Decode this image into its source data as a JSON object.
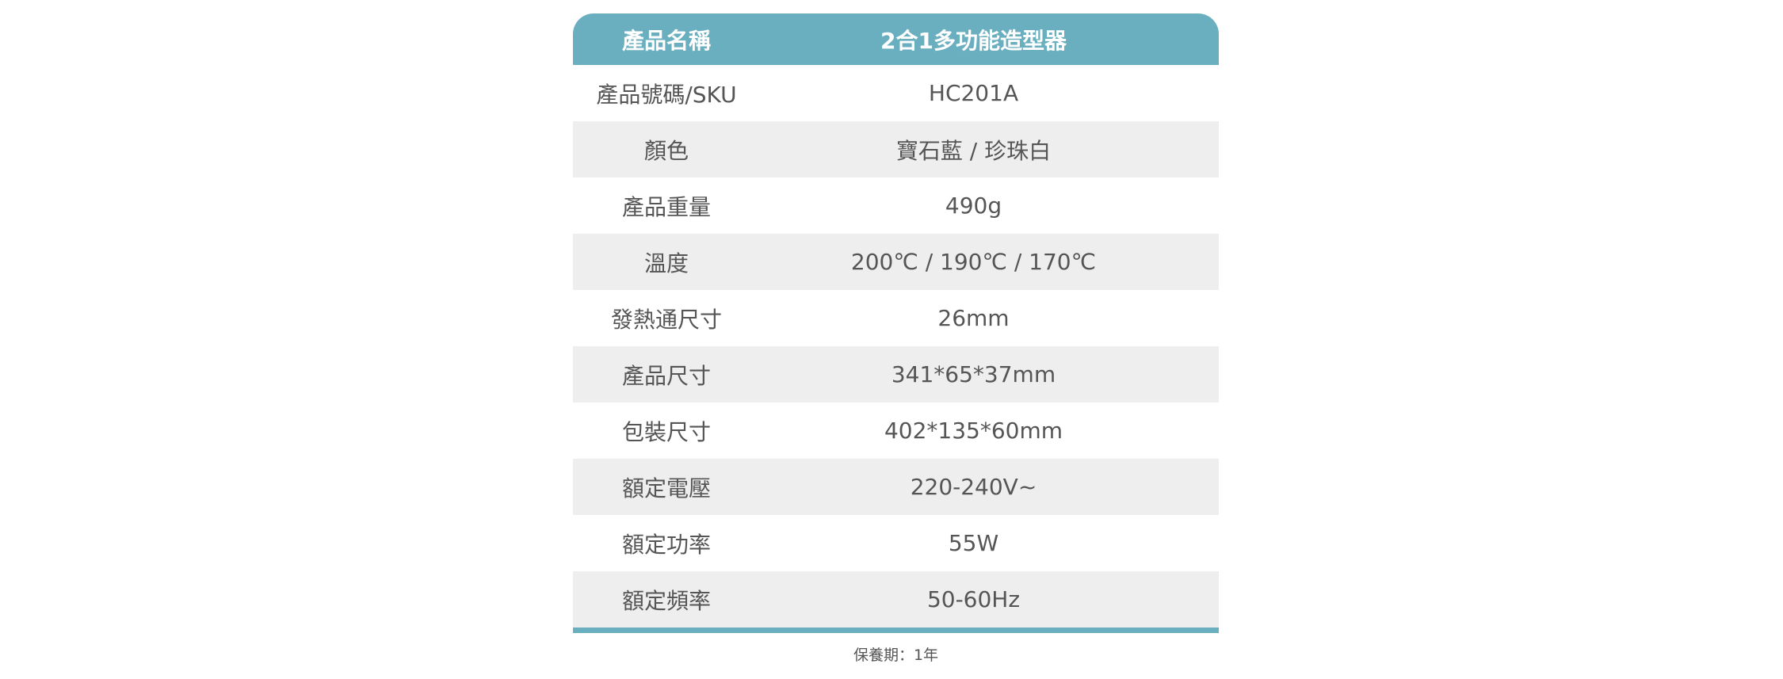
{
  "header": {
    "label": "產品名稱",
    "value": "2合1多功能造型器"
  },
  "rows": [
    {
      "label": "產品號碼/SKU",
      "value": "HC201A"
    },
    {
      "label": "顏色",
      "value": "寶石藍 / 珍珠白"
    },
    {
      "label": "產品重量",
      "value": "490g"
    },
    {
      "label": "溫度",
      "value": "200℃ / 190℃ / 170℃"
    },
    {
      "label": "發熱通尺寸",
      "value": "26mm"
    },
    {
      "label": "產品尺寸",
      "value": "341*65*37mm"
    },
    {
      "label": "包裝尺寸",
      "value": "402*135*60mm"
    },
    {
      "label": "額定電壓",
      "value": "220-240V~"
    },
    {
      "label": "額定功率",
      "value": "55W"
    },
    {
      "label": "額定頻率",
      "value": "50-60Hz"
    }
  ],
  "footer": "保養期：1年",
  "colors": {
    "accent": "#6aafbf",
    "stripe": "#eeeeee",
    "text": "#555555"
  }
}
